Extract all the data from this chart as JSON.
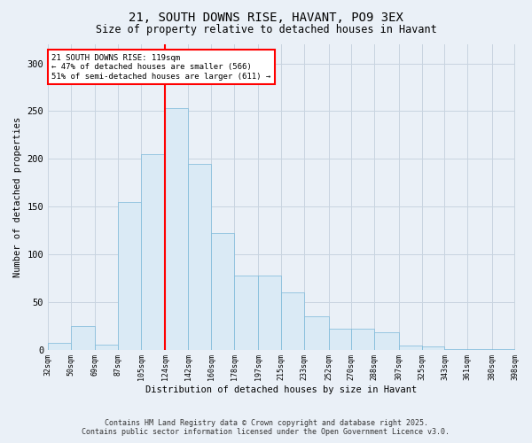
{
  "title": "21, SOUTH DOWNS RISE, HAVANT, PO9 3EX",
  "subtitle": "Size of property relative to detached houses in Havant",
  "xlabel": "Distribution of detached houses by size in Havant",
  "ylabel": "Number of detached properties",
  "bar_color": "#daeaf5",
  "bar_edge_color": "#7ab8d9",
  "annotation_line_color": "red",
  "annotation_box_text": "21 SOUTH DOWNS RISE: 119sqm\n← 47% of detached houses are smaller (566)\n51% of semi-detached houses are larger (611) →",
  "vline_x": 124,
  "bin_edges": [
    32,
    50,
    69,
    87,
    105,
    124,
    142,
    160,
    178,
    197,
    215,
    233,
    252,
    270,
    288,
    307,
    325,
    343,
    361,
    380,
    398
  ],
  "bar_heights": [
    7,
    25,
    5,
    155,
    205,
    253,
    195,
    122,
    78,
    78,
    60,
    35,
    22,
    22,
    18,
    4,
    3,
    1,
    1,
    1
  ],
  "ylim": [
    0,
    320
  ],
  "yticks": [
    0,
    50,
    100,
    150,
    200,
    250,
    300
  ],
  "footer_text": "Contains HM Land Registry data © Crown copyright and database right 2025.\nContains public sector information licensed under the Open Government Licence v3.0.",
  "background_color": "#eaf0f7",
  "plot_background_color": "#eaf0f7",
  "grid_color": "#c8d4e0"
}
